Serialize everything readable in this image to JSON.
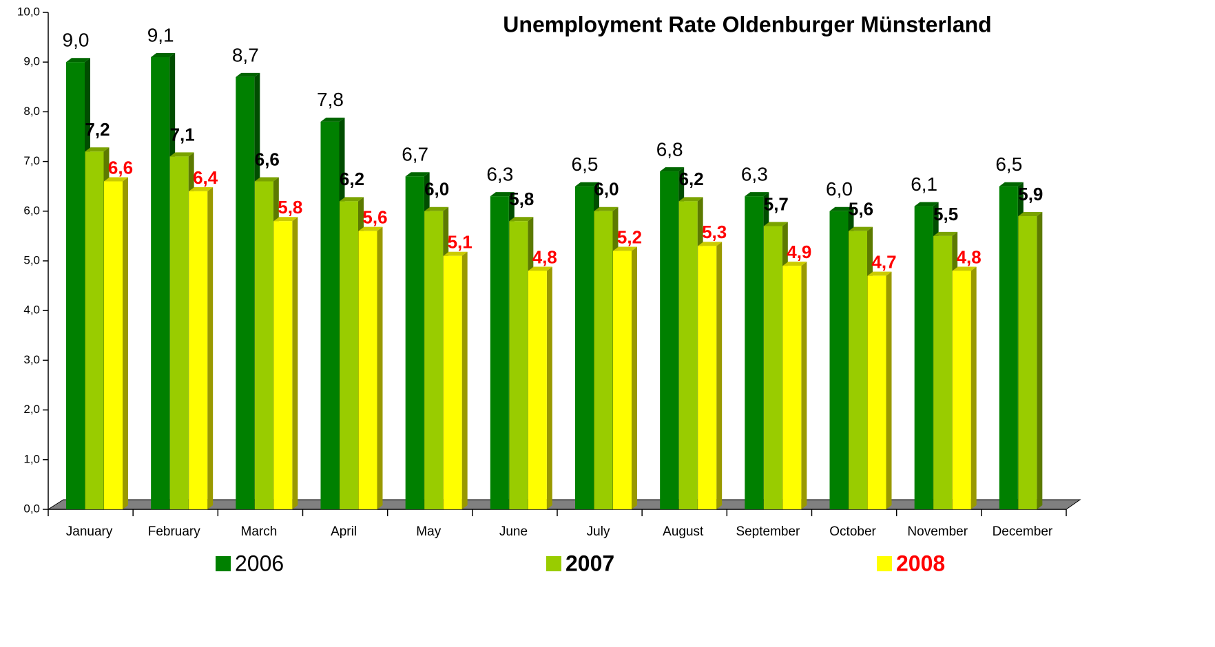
{
  "chart_data": {
    "type": "bar3d",
    "title": "Unemployment Rate Oldenburger Münsterland",
    "categories": [
      "January",
      "February",
      "March",
      "April",
      "May",
      "June",
      "July",
      "August",
      "September",
      "October",
      "November",
      "December"
    ],
    "series": [
      {
        "name": "2006",
        "color": "#008000",
        "values": [
          9.0,
          9.1,
          8.7,
          7.8,
          6.7,
          6.3,
          6.5,
          6.8,
          6.3,
          6.0,
          6.1,
          6.5
        ],
        "value_labels": [
          "9,0",
          "9,1",
          "8,7",
          "7,8",
          "6,7",
          "6,3",
          "6,5",
          "6,8",
          "6,3",
          "6,0",
          "6,1",
          "6,5"
        ]
      },
      {
        "name": "2007",
        "color": "#99cc00",
        "values": [
          7.2,
          7.1,
          6.6,
          6.2,
          6.0,
          5.8,
          6.0,
          6.2,
          5.7,
          5.6,
          5.5,
          5.9
        ],
        "value_labels": [
          "7,2",
          "7,1",
          "6,6",
          "6,2",
          "6,0",
          "5,8",
          "6,0",
          "6,2",
          "5,7",
          "5,6",
          "5,5",
          "5,9"
        ]
      },
      {
        "name": "2008",
        "color": "#ffff00",
        "values": [
          6.6,
          6.4,
          5.8,
          5.6,
          5.1,
          4.8,
          5.2,
          5.3,
          4.9,
          4.7,
          4.8,
          null
        ],
        "value_labels": [
          "6,6",
          "6,4",
          "5,8",
          "5,6",
          "5,1",
          "4,8",
          "5,2",
          "5,3",
          "4,9",
          "4,7",
          "4,8",
          null
        ]
      }
    ],
    "ylim": [
      0,
      10
    ],
    "yticks": [
      {
        "value": 0,
        "label": "0,0"
      },
      {
        "value": 1,
        "label": "1,0"
      },
      {
        "value": 2,
        "label": "2,0"
      },
      {
        "value": 3,
        "label": "3,0"
      },
      {
        "value": 4,
        "label": "4,0"
      },
      {
        "value": 5,
        "label": "5,0"
      },
      {
        "value": 6,
        "label": "6,0"
      },
      {
        "value": 7,
        "label": "7,0"
      },
      {
        "value": 8,
        "label": "8,0"
      },
      {
        "value": 9,
        "label": "9,0"
      },
      {
        "value": 10,
        "label": "10,0"
      }
    ],
    "legend": "bottom"
  }
}
